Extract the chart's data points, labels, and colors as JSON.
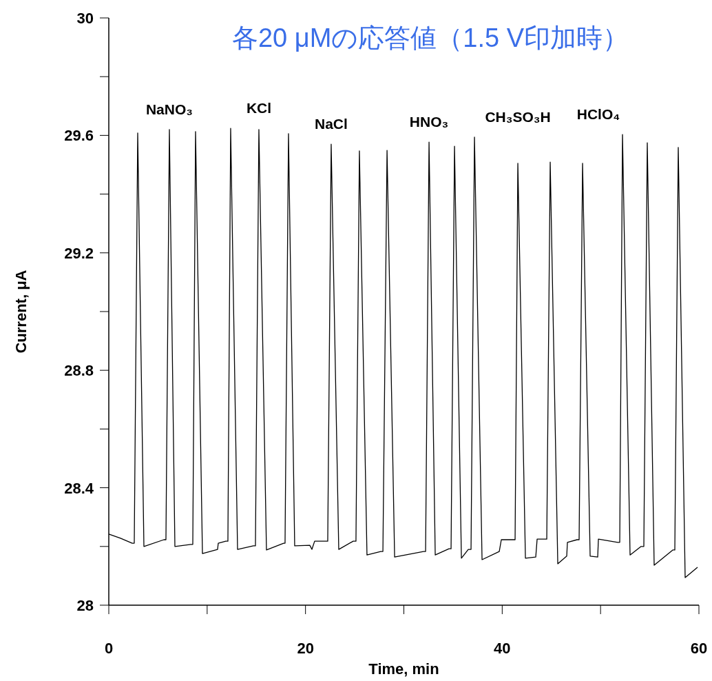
{
  "chart_data": {
    "type": "line",
    "title": "各20 μMの応答値（1.5 V印加時）",
    "xlabel": "Time, min",
    "ylabel": "Current, μA",
    "xlim": [
      0,
      60
    ],
    "ylim": [
      28,
      30
    ],
    "xticks": [
      0,
      {
        "value": 10,
        "label": null
      },
      20,
      {
        "value": 30,
        "label": null
      },
      40,
      {
        "value": 50,
        "label": null
      },
      60
    ],
    "yticks": [
      28,
      {
        "value": 28.2,
        "label": null
      },
      28.4,
      {
        "value": 28.6,
        "label": null
      },
      28.8,
      {
        "value": 29.0,
        "label": null
      },
      29.2,
      {
        "value": 29.4,
        "label": null
      },
      29.6,
      {
        "value": 29.8,
        "label": null
      },
      30
    ],
    "color": "#000000",
    "x": [
      0,
      1.19,
      2.38,
      2.59,
      2.94,
      3.57,
      5.6,
      5.81,
      6.16,
      6.72,
      8.33,
      8.54,
      8.82,
      9.52,
      11.06,
      11.13,
      11.9,
      12.11,
      12.39,
      13.09,
      14.7,
      14.91,
      15.26,
      16.03,
      17.78,
      17.92,
      18.27,
      18.9,
      20.44,
      20.65,
      20.93,
      21.98,
      22.26,
      22.61,
      23.38,
      24.85,
      25.13,
      25.48,
      26.25,
      27.65,
      27.87,
      28.29,
      29.06,
      32.0,
      32.21,
      32.56,
      33.19,
      34.59,
      34.8,
      35.15,
      35.85,
      36.55,
      36.83,
      37.18,
      37.95,
      39.7,
      39.91,
      41.1,
      41.31,
      41.59,
      42.36,
      43.41,
      43.55,
      44.25,
      44.53,
      44.88,
      45.65,
      46.56,
      46.63,
      47.61,
      47.82,
      48.17,
      48.94,
      49.71,
      49.78,
      51.74,
      51.95,
      52.23,
      53.0,
      54.12,
      54.4,
      54.75,
      55.45,
      57.34,
      57.55,
      57.9,
      58.6,
      59.86
    ],
    "values": [
      28.242,
      28.228,
      28.211,
      28.211,
      29.608,
      28.2,
      28.223,
      28.223,
      29.62,
      28.2,
      28.207,
      28.207,
      29.613,
      28.176,
      28.19,
      28.211,
      28.218,
      28.218,
      29.624,
      28.19,
      28.202,
      28.202,
      29.62,
      28.188,
      28.211,
      28.211,
      29.606,
      28.202,
      28.204,
      28.19,
      28.218,
      28.218,
      28.218,
      29.57,
      28.19,
      28.218,
      28.218,
      29.547,
      28.171,
      28.183,
      28.183,
      29.549,
      28.164,
      28.183,
      28.183,
      29.577,
      28.171,
      28.192,
      28.192,
      29.563,
      28.16,
      28.19,
      28.19,
      29.594,
      28.155,
      28.183,
      28.223,
      28.223,
      28.223,
      29.505,
      28.16,
      28.164,
      28.225,
      28.225,
      28.225,
      29.509,
      28.141,
      28.167,
      28.214,
      28.223,
      28.223,
      29.505,
      28.167,
      28.164,
      28.225,
      28.214,
      28.214,
      29.603,
      28.171,
      28.2,
      28.2,
      29.575,
      28.136,
      28.188,
      28.188,
      29.559,
      28.094,
      28.129
    ],
    "annotations": [
      "NaNO₃",
      "KCl",
      "NaCl",
      "HNO₃",
      "CH₃SO₃H",
      "HClO₄"
    ]
  }
}
